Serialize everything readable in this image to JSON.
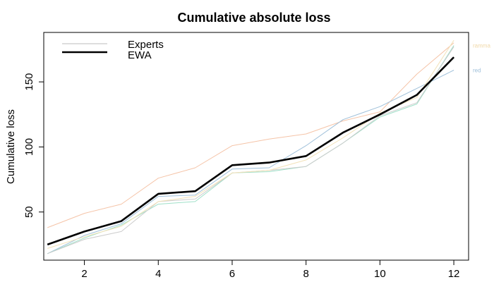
{
  "chart_data": {
    "type": "line",
    "title": "Cumulative absolute loss",
    "xlabel": "",
    "ylabel": "Cumulative loss",
    "xlim": [
      0.9,
      12.4
    ],
    "ylim": [
      13,
      188
    ],
    "x": [
      1,
      2,
      3,
      4,
      5,
      6,
      7,
      8,
      9,
      10,
      11,
      12
    ],
    "xticks": [
      2,
      4,
      6,
      8,
      10,
      12
    ],
    "yticks": [
      50,
      100,
      150
    ],
    "legend": {
      "position": "top-left",
      "entries": [
        "Experts",
        "EWA"
      ]
    },
    "grid": false,
    "series": [
      {
        "name": "EWA",
        "color": "#000000",
        "width": 2.6,
        "values": [
          25,
          35,
          43,
          64,
          66,
          86,
          88,
          93,
          111,
          125,
          140,
          169
        ]
      },
      {
        "name": "",
        "color": "#f5c4a8",
        "width": 1,
        "values": [
          38,
          49,
          56,
          76,
          84,
          101,
          106,
          110,
          120,
          127,
          156,
          180
        ]
      },
      {
        "name": "",
        "color": "#9fc0da",
        "width": 1,
        "values": [
          18,
          32,
          41,
          62,
          63,
          83,
          84,
          101,
          121,
          131,
          145,
          159
        ]
      },
      {
        "name": "",
        "color": "#9fe0c8",
        "width": 1,
        "values": [
          18,
          30,
          40,
          56,
          58,
          80,
          81,
          85,
          103,
          123,
          133,
          178
        ]
      },
      {
        "name": "",
        "color": "#cccccc",
        "width": 1,
        "values": [
          18,
          29,
          35,
          58,
          60,
          80,
          82,
          85,
          103,
          124,
          134,
          177
        ]
      },
      {
        "name": "",
        "color": "#f2e2b8",
        "width": 1,
        "values": [
          22,
          31,
          39,
          58,
          62,
          80,
          82,
          90,
          107,
          126,
          138,
          182
        ]
      }
    ],
    "series_end_labels": [
      {
        "text": "ramma",
        "color": "#f0d8a8",
        "value": 178
      },
      {
        "text": "red",
        "color": "#9fc0da",
        "value": 159
      }
    ]
  }
}
